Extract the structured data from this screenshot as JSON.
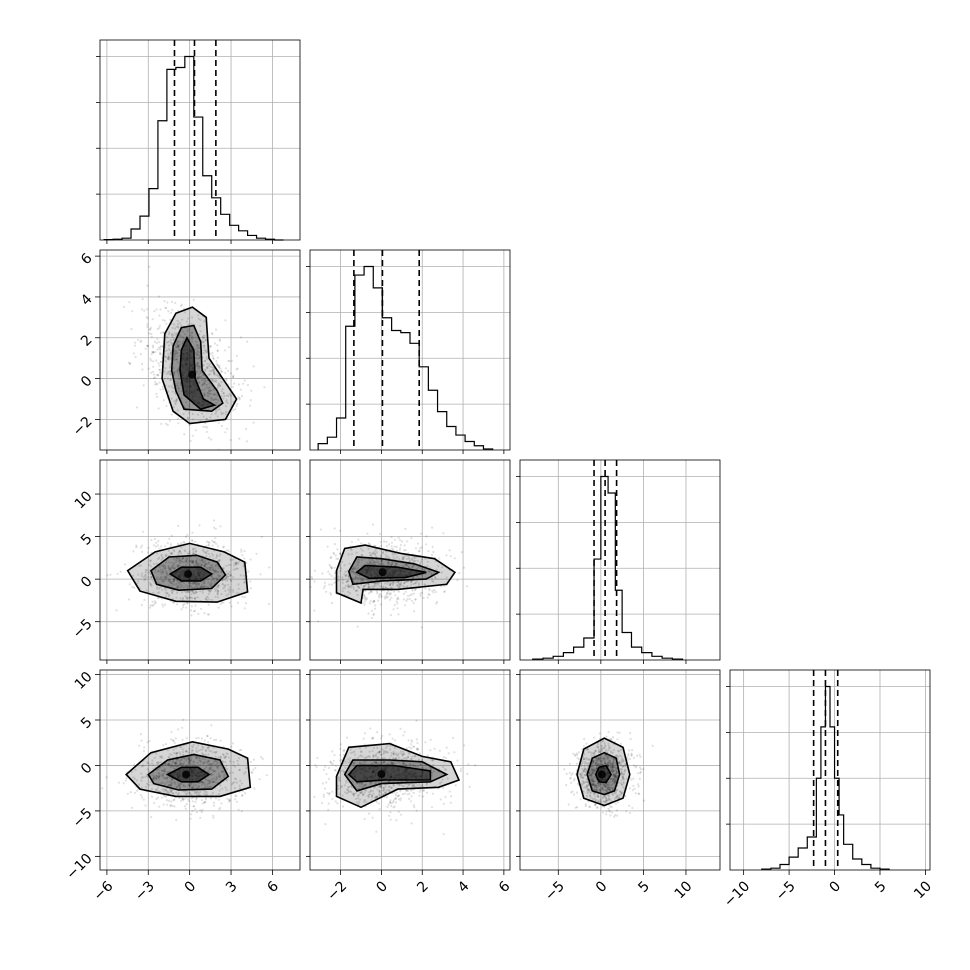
{
  "chart_data": {
    "type": "corner",
    "parameters": 4,
    "ranges": [
      [
        -6.5,
        8.0
      ],
      [
        -3.5,
        6.3
      ],
      [
        -9.5,
        14.0
      ],
      [
        -11.5,
        10.5
      ]
    ],
    "ticks": [
      [
        -6,
        -3,
        0,
        3,
        6
      ],
      [
        -2,
        0,
        2,
        4,
        6
      ],
      [
        -5,
        0,
        5,
        10
      ],
      [
        -10,
        -5,
        0,
        5,
        10
      ]
    ],
    "tick_labels": [
      [
        "−6",
        "−3",
        "0",
        "3",
        "6"
      ],
      [
        "−2",
        "0",
        "2",
        "4",
        "6"
      ],
      [
        "−5",
        "0",
        "5",
        "10"
      ],
      [
        "−10",
        "−5",
        "0",
        "5",
        "10"
      ]
    ],
    "quantiles": [
      [
        -1.1,
        0.35,
        1.9
      ],
      [
        -1.35,
        0.05,
        1.85
      ],
      [
        -0.8,
        0.5,
        1.85
      ],
      [
        -2.3,
        -1.0,
        0.35
      ]
    ],
    "histograms": [
      {
        "edges": [
          -6.2,
          -5.55,
          -4.9,
          -4.25,
          -3.6,
          -2.95,
          -2.3,
          -1.65,
          -1.0,
          -0.35,
          0.3,
          0.95,
          1.6,
          2.25,
          2.9,
          3.55,
          4.2,
          4.85,
          5.5,
          6.15,
          6.8
        ],
        "counts": [
          0.002,
          0.004,
          0.01,
          0.06,
          0.13,
          0.28,
          0.65,
          0.93,
          0.94,
          1.0,
          0.67,
          0.35,
          0.23,
          0.14,
          0.08,
          0.05,
          0.025,
          0.01,
          0.004,
          0
        ]
      },
      {
        "edges": [
          -3.1,
          -2.65,
          -2.2,
          -1.75,
          -1.3,
          -0.85,
          -0.4,
          0.05,
          0.5,
          0.95,
          1.4,
          1.85,
          2.3,
          2.75,
          3.2,
          3.65,
          4.1,
          4.55,
          5.0,
          5.45
        ],
        "counts": [
          0.03,
          0.06,
          0.15,
          0.58,
          0.82,
          0.86,
          0.76,
          0.62,
          0.56,
          0.55,
          0.5,
          0.39,
          0.28,
          0.18,
          0.11,
          0.07,
          0.04,
          0.02,
          0.005
        ]
      },
      {
        "edges": [
          -8.0,
          -6.8,
          -5.6,
          -4.4,
          -3.2,
          -2.0,
          -0.8,
          0.0,
          0.85,
          1.7,
          2.5,
          3.6,
          4.8,
          6.0,
          7.2,
          8.4,
          9.6
        ],
        "counts": [
          0.005,
          0.01,
          0.02,
          0.04,
          0.07,
          0.12,
          0.55,
          1.0,
          0.91,
          0.38,
          0.15,
          0.07,
          0.04,
          0.02,
          0.01,
          0.005
        ]
      },
      {
        "edges": [
          -8.0,
          -7.0,
          -6.0,
          -5.0,
          -4.0,
          -3.0,
          -2.0,
          -1.5,
          -1.0,
          -0.5,
          0.0,
          0.5,
          1.0,
          2.0,
          3.0,
          4.0,
          5.0,
          6.0
        ],
        "counts": [
          0.005,
          0.01,
          0.03,
          0.07,
          0.12,
          0.18,
          0.5,
          0.78,
          1.0,
          0.78,
          0.5,
          0.3,
          0.14,
          0.06,
          0.03,
          0.01,
          0.005
        ]
      }
    ],
    "pairs": [
      {
        "x": 0,
        "y": 1,
        "cx": 0.0,
        "cy": 0.5,
        "sx": 1.7,
        "sy": 1.4,
        "rho": -0.45
      },
      {
        "x": 0,
        "y": 2,
        "cx": 0.2,
        "cy": 0.6,
        "sx": 1.9,
        "sy": 1.9,
        "rho": 0.0
      },
      {
        "x": 1,
        "y": 2,
        "cx": 0.2,
        "cy": 0.6,
        "sx": 1.4,
        "sy": 1.8,
        "rho": 0.05
      },
      {
        "x": 0,
        "y": 3,
        "cx": 0.1,
        "cy": -1.0,
        "sx": 1.9,
        "sy": 1.8,
        "rho": 0.0
      },
      {
        "x": 1,
        "y": 3,
        "cx": 0.2,
        "cy": -1.0,
        "sx": 1.4,
        "sy": 1.8,
        "rho": 0.05
      },
      {
        "x": 2,
        "y": 3,
        "cx": 0.4,
        "cy": -1.0,
        "sx": 1.7,
        "sy": 1.8,
        "rho": 0.0
      }
    ],
    "contours": [
      {
        "x": 0,
        "y": 1,
        "levels": [
          [
            [
              -1.8,
              2.2
            ],
            [
              -1.0,
              3.2
            ],
            [
              0.2,
              3.5
            ],
            [
              1.2,
              3.0
            ],
            [
              1.4,
              1.0
            ],
            [
              2.6,
              -0.2
            ],
            [
              3.4,
              -1.0
            ],
            [
              2.6,
              -2.0
            ],
            [
              0.0,
              -2.2
            ],
            [
              -1.2,
              -1.6
            ],
            [
              -2.0,
              0.0
            ],
            [
              -1.8,
              2.2
            ]
          ],
          [
            [
              -1.2,
              1.6
            ],
            [
              -0.6,
              2.5
            ],
            [
              0.3,
              2.6
            ],
            [
              0.8,
              1.8
            ],
            [
              0.9,
              0.4
            ],
            [
              2.0,
              -0.6
            ],
            [
              2.4,
              -1.2
            ],
            [
              1.6,
              -1.6
            ],
            [
              -0.4,
              -1.5
            ],
            [
              -1.0,
              -0.6
            ],
            [
              -1.3,
              0.4
            ],
            [
              -1.2,
              1.6
            ]
          ],
          [
            [
              -0.6,
              1.4
            ],
            [
              -0.2,
              2.0
            ],
            [
              0.3,
              1.4
            ],
            [
              0.4,
              0.0
            ],
            [
              1.0,
              -1.0
            ],
            [
              1.8,
              -1.3
            ],
            [
              0.8,
              -1.5
            ],
            [
              -0.4,
              -0.8
            ],
            [
              -0.7,
              0.4
            ],
            [
              -0.6,
              1.4
            ]
          ]
        ]
      },
      {
        "x": 0,
        "y": 2,
        "levels": [
          [
            [
              -4.5,
              1.0
            ],
            [
              -2.5,
              3.2
            ],
            [
              0.0,
              4.2
            ],
            [
              2.5,
              3.2
            ],
            [
              4.0,
              2.0
            ],
            [
              4.2,
              -1.5
            ],
            [
              2.0,
              -2.7
            ],
            [
              -1.0,
              -2.6
            ],
            [
              -3.6,
              -1.4
            ],
            [
              -4.5,
              1.0
            ]
          ],
          [
            [
              -2.8,
              1.0
            ],
            [
              -1.5,
              2.6
            ],
            [
              0.5,
              2.8
            ],
            [
              2.0,
              2.0
            ],
            [
              2.6,
              0.5
            ],
            [
              1.6,
              -1.1
            ],
            [
              -0.8,
              -1.3
            ],
            [
              -2.4,
              -0.6
            ],
            [
              -2.8,
              1.0
            ]
          ],
          [
            [
              -1.4,
              0.6
            ],
            [
              -0.6,
              1.4
            ],
            [
              0.8,
              1.4
            ],
            [
              1.6,
              0.6
            ],
            [
              0.8,
              -0.2
            ],
            [
              -0.6,
              -0.2
            ],
            [
              -1.4,
              0.6
            ]
          ]
        ]
      },
      {
        "x": 1,
        "y": 2,
        "levels": [
          [
            [
              -2.2,
              1.0
            ],
            [
              -1.8,
              3.6
            ],
            [
              -0.8,
              4.0
            ],
            [
              1.0,
              3.0
            ],
            [
              2.6,
              2.4
            ],
            [
              3.6,
              0.8
            ],
            [
              3.2,
              -0.6
            ],
            [
              0.8,
              -1.2
            ],
            [
              -0.9,
              -1.2
            ],
            [
              -1.0,
              -2.8
            ],
            [
              -2.2,
              -1.6
            ],
            [
              -2.2,
              1.0
            ]
          ],
          [
            [
              -1.6,
              0.9
            ],
            [
              -1.2,
              2.6
            ],
            [
              0.0,
              2.4
            ],
            [
              1.6,
              1.8
            ],
            [
              2.8,
              0.8
            ],
            [
              2.2,
              0.0
            ],
            [
              0.0,
              -0.2
            ],
            [
              -1.4,
              -0.6
            ],
            [
              -1.6,
              0.9
            ]
          ],
          [
            [
              -1.2,
              0.8
            ],
            [
              -0.8,
              1.6
            ],
            [
              0.8,
              1.4
            ],
            [
              2.2,
              0.8
            ],
            [
              1.2,
              0.2
            ],
            [
              -0.6,
              0.1
            ],
            [
              -1.2,
              0.8
            ]
          ]
        ]
      },
      {
        "x": 0,
        "y": 3,
        "levels": [
          [
            [
              -4.6,
              -1.0
            ],
            [
              -2.8,
              1.4
            ],
            [
              0.2,
              2.6
            ],
            [
              2.8,
              1.8
            ],
            [
              4.2,
              0.8
            ],
            [
              4.4,
              -2.4
            ],
            [
              2.2,
              -3.4
            ],
            [
              -1.0,
              -3.4
            ],
            [
              -3.6,
              -2.6
            ],
            [
              -4.6,
              -1.0
            ]
          ],
          [
            [
              -3.0,
              -1.0
            ],
            [
              -1.6,
              0.6
            ],
            [
              0.3,
              1.2
            ],
            [
              2.2,
              0.6
            ],
            [
              2.8,
              -1.2
            ],
            [
              1.6,
              -2.6
            ],
            [
              -0.8,
              -2.7
            ],
            [
              -2.6,
              -2.0
            ],
            [
              -3.0,
              -1.0
            ]
          ],
          [
            [
              -1.6,
              -1.0
            ],
            [
              -0.6,
              -0.2
            ],
            [
              0.6,
              -0.2
            ],
            [
              1.4,
              -1.0
            ],
            [
              0.6,
              -1.8
            ],
            [
              -0.6,
              -1.8
            ],
            [
              -1.6,
              -1.0
            ]
          ]
        ]
      },
      {
        "x": 1,
        "y": 3,
        "levels": [
          [
            [
              -2.2,
              -1.2
            ],
            [
              -1.6,
              2.0
            ],
            [
              0.4,
              2.4
            ],
            [
              2.0,
              1.0
            ],
            [
              3.4,
              0.4
            ],
            [
              3.8,
              -1.6
            ],
            [
              2.8,
              -2.4
            ],
            [
              0.8,
              -2.6
            ],
            [
              -1.0,
              -4.6
            ],
            [
              -2.2,
              -3.4
            ],
            [
              -2.2,
              -1.2
            ]
          ],
          [
            [
              -1.8,
              -1.0
            ],
            [
              -1.4,
              0.6
            ],
            [
              0.4,
              0.6
            ],
            [
              2.0,
              0.4
            ],
            [
              3.2,
              -1.0
            ],
            [
              2.4,
              -1.8
            ],
            [
              0.0,
              -2.0
            ],
            [
              -1.2,
              -2.8
            ],
            [
              -1.8,
              -1.0
            ]
          ],
          [
            [
              -1.6,
              -1.0
            ],
            [
              -1.2,
              0.0
            ],
            [
              0.6,
              0.0
            ],
            [
              2.4,
              -0.6
            ],
            [
              2.4,
              -1.6
            ],
            [
              0.2,
              -1.6
            ],
            [
              -1.2,
              -1.8
            ],
            [
              -1.6,
              -1.0
            ]
          ]
        ]
      },
      {
        "x": 2,
        "y": 3,
        "levels": [
          [
            [
              -2.8,
              -1.0
            ],
            [
              -2.0,
              1.8
            ],
            [
              0.4,
              3.0
            ],
            [
              2.6,
              2.0
            ],
            [
              3.4,
              -1.0
            ],
            [
              2.6,
              -3.6
            ],
            [
              0.4,
              -4.4
            ],
            [
              -2.0,
              -3.6
            ],
            [
              -2.8,
              -1.0
            ]
          ],
          [
            [
              -1.6,
              -1.0
            ],
            [
              -1.0,
              0.8
            ],
            [
              0.4,
              1.4
            ],
            [
              1.8,
              0.8
            ],
            [
              2.2,
              -1.0
            ],
            [
              1.6,
              -2.8
            ],
            [
              0.4,
              -3.2
            ],
            [
              -1.0,
              -2.8
            ],
            [
              -1.6,
              -1.0
            ]
          ],
          [
            [
              -0.6,
              -1.0
            ],
            [
              -0.2,
              -0.2
            ],
            [
              0.6,
              0.0
            ],
            [
              1.2,
              -1.0
            ],
            [
              0.6,
              -1.9
            ],
            [
              -0.2,
              -1.8
            ],
            [
              -0.6,
              -1.0
            ]
          ]
        ]
      }
    ],
    "grid": true,
    "title": "",
    "xlabel": "",
    "ylabel": ""
  }
}
